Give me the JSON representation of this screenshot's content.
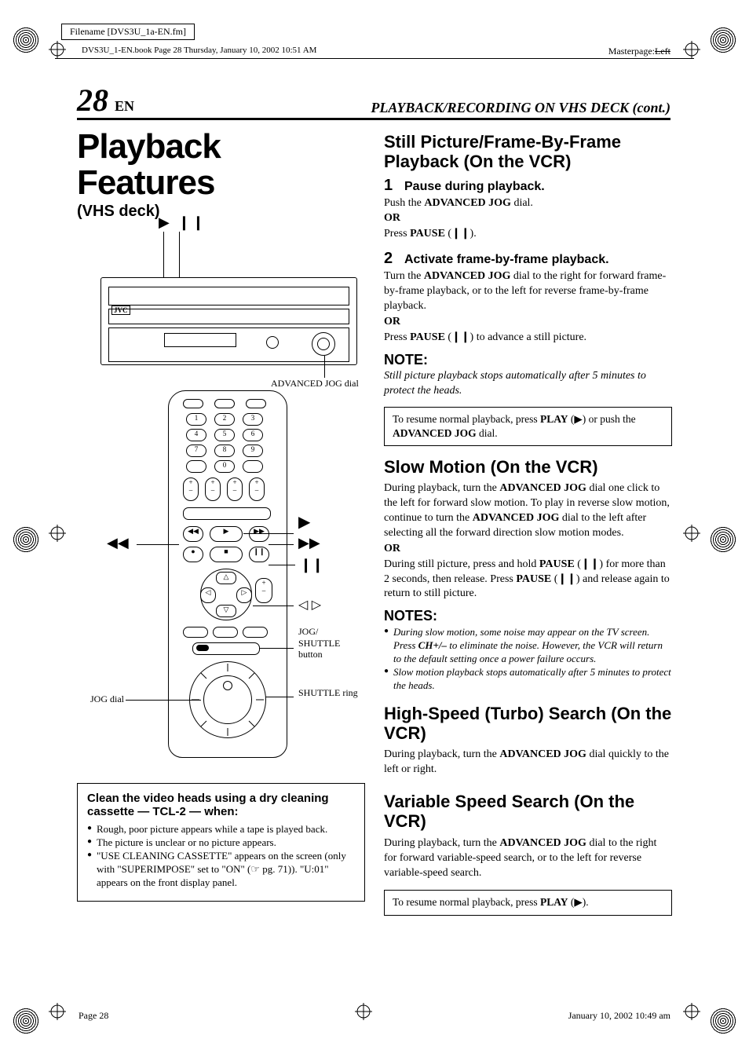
{
  "meta": {
    "filename": "Filename [DVS3U_1a-EN.fm]",
    "book_line": "DVS3U_1-EN.book  Page 28  Thursday, January 10, 2002  10:51 AM",
    "masterpage_label": "Masterpage:",
    "masterpage_value": "Left"
  },
  "header": {
    "page_number": "28",
    "page_lang": "EN",
    "section_title": "PLAYBACK/RECORDING ON VHS DECK (cont.)"
  },
  "left": {
    "title": "Playback Features",
    "subtitle": "(VHS deck)",
    "play_pause_glyph": "▶ ❙❙",
    "vcr_label_dial": "ADVANCED JOG dial",
    "jvc": "JVC",
    "remote": {
      "play_glyph": "▶",
      "ff_glyph": "▶▶",
      "rew_glyph": "◀◀",
      "pause_glyph": "❙❙",
      "left_right_glyph": "◁ ▷",
      "jog_dial_label": "JOG dial",
      "jog_shuttle_label": "JOG/\nSHUTTLE button",
      "shuttle_ring_label": "SHUTTLE ring"
    },
    "clean_box": {
      "heading": "Clean the video heads using a dry cleaning cassette — TCL-2 — when:",
      "items": [
        "Rough, poor picture appears while a tape is played back.",
        "The picture is unclear or no picture appears.",
        "\"USE CLEANING CASSETTE\" appears on the screen (only with \"SUPERIMPOSE\" set to \"ON\" (☞ pg. 71)). \"U:01\" appears on the front display panel."
      ]
    }
  },
  "right": {
    "still": {
      "heading": "Still Picture/Frame-By-Frame Playback (On the VCR)",
      "step1_num": "1",
      "step1_h": "Pause during playback.",
      "step1_line1a": "Push the ",
      "step1_line1b": "ADVANCED JOG",
      "step1_line1c": " dial.",
      "or": "OR",
      "step1_line2a": "Press ",
      "step1_line2b": "PAUSE",
      "step1_line2c": " (❙❙).",
      "step2_num": "2",
      "step2_h": "Activate frame-by-frame playback.",
      "step2_body_a": "Turn the ",
      "step2_body_b": "ADVANCED JOG",
      "step2_body_c": " dial to the right for forward frame-by-frame playback, or to the left for reverse frame-by-frame playback.",
      "step2_body2_a": "Press ",
      "step2_body2_b": "PAUSE",
      "step2_body2_c": " (❙❙) to advance a still picture.",
      "note_h": "NOTE:",
      "note_body": "Still picture playback stops automatically after 5 minutes to protect the heads.",
      "tip_a": "To resume normal playback, press ",
      "tip_b": "PLAY",
      "tip_c": " (▶) or push the ",
      "tip_d": "ADVANCED JOG",
      "tip_e": " dial."
    },
    "slow": {
      "heading": "Slow Motion (On the VCR)",
      "body1_a": "During playback, turn the ",
      "body1_b": "ADVANCED JOG",
      "body1_c": " dial one click to the left for forward slow motion. To play in reverse slow motion, continue to turn the ",
      "body1_d": "ADVANCED JOG",
      "body1_e": " dial to the left after selecting all the forward direction slow motion modes.",
      "or": "OR",
      "body2_a": "During still picture, press and hold ",
      "body2_b": "PAUSE",
      "body2_c": " (❙❙) for more than 2 seconds, then release. Press ",
      "body2_d": "PAUSE",
      "body2_e": " (❙❙) and release again to return to still picture.",
      "notes_h": "NOTES:",
      "notes": [
        "During slow motion, some noise may appear on the TV screen. Press <b>CH+/–</b> to eliminate the noise. However, the VCR will return to the default setting once a power failure occurs.",
        "Slow motion playback stops automatically after 5 minutes to protect the heads."
      ]
    },
    "turbo": {
      "heading": "High-Speed (Turbo) Search (On the VCR)",
      "body_a": "During playback, turn the ",
      "body_b": "ADVANCED JOG",
      "body_c": " dial quickly to the left or right."
    },
    "variable": {
      "heading": "Variable Speed Search (On the VCR)",
      "body_a": "During playback, turn the ",
      "body_b": "ADVANCED JOG",
      "body_c": " dial to the right for forward variable-speed search, or to the left for reverse variable-speed search.",
      "tip_a": "To resume normal playback, press ",
      "tip_b": "PLAY",
      "tip_c": " (▶)."
    }
  },
  "footer": {
    "left": "Page 28",
    "right": "January 10, 2002 10:49 am"
  }
}
